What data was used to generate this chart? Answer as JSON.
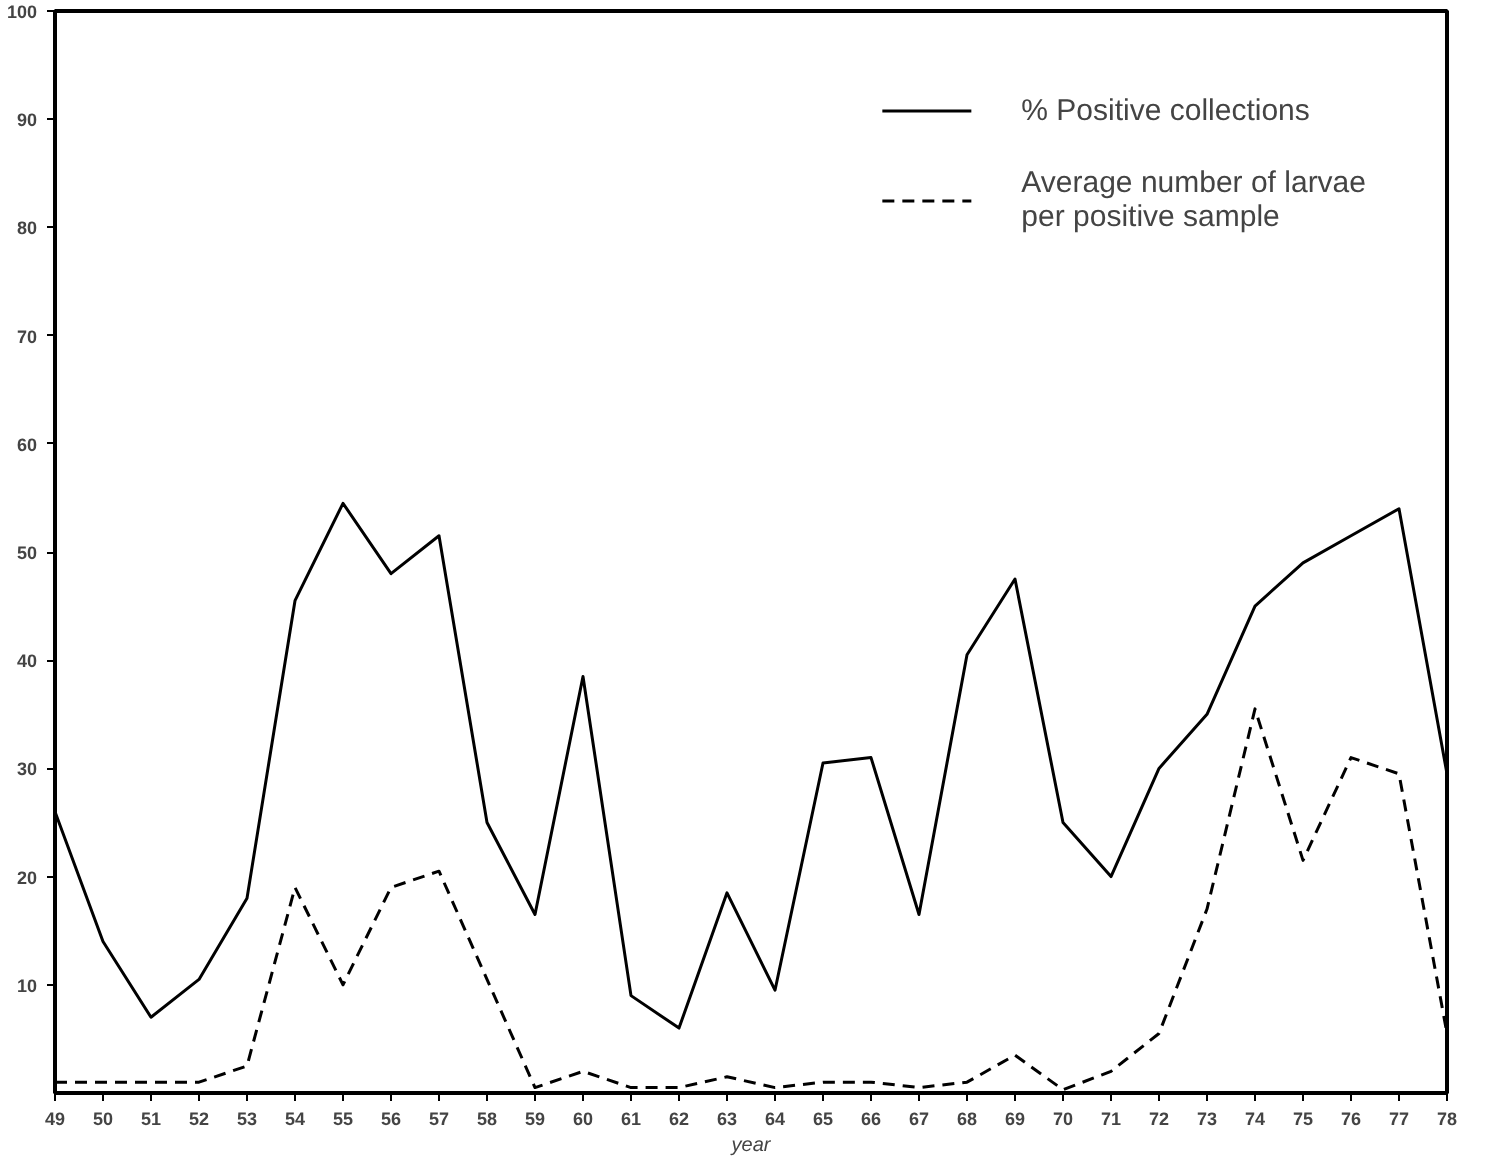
{
  "chart_data": {
    "type": "line",
    "xlabel": "year",
    "x": [
      49,
      50,
      51,
      52,
      53,
      54,
      55,
      56,
      57,
      58,
      59,
      60,
      61,
      62,
      63,
      64,
      65,
      66,
      67,
      68,
      69,
      70,
      71,
      72,
      73,
      74,
      75,
      76,
      77,
      78
    ],
    "xlim": [
      49,
      78
    ],
    "xticks": [
      49,
      50,
      51,
      52,
      53,
      54,
      55,
      56,
      57,
      58,
      59,
      60,
      61,
      62,
      63,
      64,
      65,
      66,
      67,
      68,
      69,
      70,
      71,
      72,
      73,
      74,
      75,
      76,
      77,
      78
    ],
    "ylim": [
      0,
      100
    ],
    "yticks": [
      10,
      20,
      30,
      40,
      50,
      60,
      70,
      80,
      90,
      100
    ],
    "grid": false,
    "legend": "top right",
    "marker": "none",
    "series": [
      {
        "name": "% Positive collections",
        "color": "#000000",
        "line_style": "solid",
        "values": [
          26,
          14,
          7,
          10.5,
          18,
          45.5,
          54.5,
          48,
          51.5,
          25,
          16.5,
          38.5,
          9,
          6,
          18.5,
          9.5,
          30.5,
          31,
          16.5,
          40.5,
          47.5,
          25,
          20,
          30,
          35,
          45,
          49,
          51.5,
          54,
          29.5
        ]
      },
      {
        "name": "Average number of larvae\nper positive sample",
        "color": "#000000",
        "line_style": "dashed",
        "values": [
          1,
          1,
          1,
          1,
          2.5,
          19,
          10,
          19,
          20.5,
          10.5,
          0.5,
          2,
          0.5,
          0.5,
          1.5,
          0.5,
          1,
          1,
          0.5,
          1,
          3.5,
          0.3,
          2,
          5.5,
          17,
          35.5,
          21.5,
          31,
          29.5,
          5.5
        ]
      }
    ]
  }
}
